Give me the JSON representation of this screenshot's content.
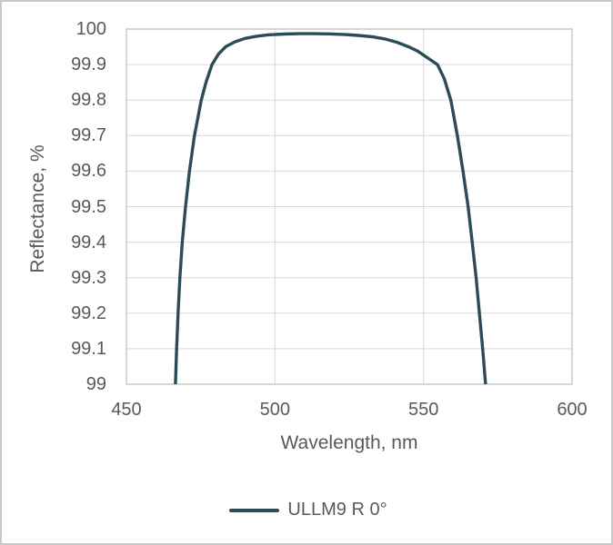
{
  "chart_data": {
    "type": "line",
    "title": "",
    "xlabel": "Wavelength, nm",
    "ylabel": "Reflectance, %",
    "xlim": [
      450,
      600
    ],
    "ylim": [
      99,
      100
    ],
    "x_ticks": [
      450,
      500,
      550,
      600
    ],
    "x_tick_labels": [
      "450",
      "500",
      "550",
      "600"
    ],
    "y_ticks": [
      100,
      99.9,
      99.8,
      99.7,
      99.6,
      99.5,
      99.4,
      99.3,
      99.2,
      99.1,
      99
    ],
    "y_tick_labels": [
      "100",
      "99.9",
      "99.8",
      "99.7",
      "99.6",
      "99.5",
      "99.4",
      "99.3",
      "99.2",
      "99.1",
      "99"
    ],
    "grid": "on",
    "legend_position": "bottom",
    "colors": {
      "line": "#2d4b57",
      "grid": "#d9d9d9",
      "axis": "#bfbfbf",
      "text": "#595959",
      "frame": "#c9c9c9"
    },
    "series": [
      {
        "name": "ULLM9 R 0°",
        "color": "#2d4b57",
        "points": [
          [
            466.5,
            99.0
          ],
          [
            466.9,
            99.1
          ],
          [
            467.4,
            99.2
          ],
          [
            468.0,
            99.3
          ],
          [
            468.8,
            99.4
          ],
          [
            469.9,
            99.5
          ],
          [
            471.2,
            99.6
          ],
          [
            472.9,
            99.7
          ],
          [
            475.2,
            99.8
          ],
          [
            476.8,
            99.85
          ],
          [
            478.8,
            99.9
          ],
          [
            481.0,
            99.93
          ],
          [
            483.5,
            99.951
          ],
          [
            486.5,
            99.964
          ],
          [
            490,
            99.974
          ],
          [
            494,
            99.98
          ],
          [
            498,
            99.984
          ],
          [
            503,
            99.986
          ],
          [
            508,
            99.987
          ],
          [
            513,
            99.987
          ],
          [
            518,
            99.9865
          ],
          [
            523,
            99.985
          ],
          [
            528,
            99.982
          ],
          [
            533,
            99.978
          ],
          [
            537,
            99.972
          ],
          [
            541,
            99.963
          ],
          [
            545,
            99.95
          ],
          [
            548,
            99.938
          ],
          [
            551,
            99.921
          ],
          [
            554.7,
            99.9
          ],
          [
            557.0,
            99.86
          ],
          [
            559.2,
            99.8
          ],
          [
            561.4,
            99.7
          ],
          [
            563.3,
            99.6
          ],
          [
            565.0,
            99.5
          ],
          [
            566.4,
            99.4
          ],
          [
            567.7,
            99.3
          ],
          [
            568.8,
            99.2
          ],
          [
            569.9,
            99.1
          ],
          [
            570.9,
            99.0
          ]
        ]
      }
    ]
  }
}
